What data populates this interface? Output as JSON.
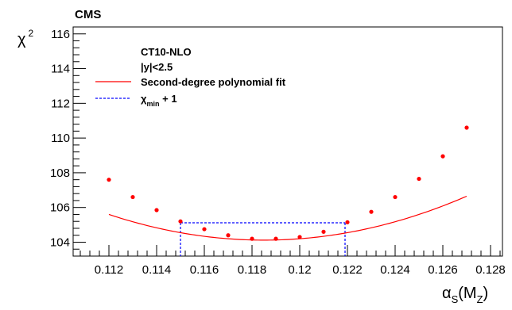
{
  "chart_data": {
    "type": "scatter",
    "experiment_label": "CMS",
    "xlabel": {
      "main": "α",
      "sub1": "S",
      "paren_open": "(M",
      "sub2": "Z",
      "paren_close": ")"
    },
    "ylabel": {
      "main": "χ",
      "sup": "2"
    },
    "xlim": [
      0.1105,
      0.1285
    ],
    "ylim": [
      103.2,
      116.4
    ],
    "x_ticks": [
      {
        "v": 0.112,
        "label": "0.112"
      },
      {
        "v": 0.114,
        "label": "0.114"
      },
      {
        "v": 0.116,
        "label": "0.116"
      },
      {
        "v": 0.118,
        "label": "0.118"
      },
      {
        "v": 0.12,
        "label": "0.12"
      },
      {
        "v": 0.122,
        "label": "0.122"
      },
      {
        "v": 0.124,
        "label": "0.124"
      },
      {
        "v": 0.126,
        "label": "0.126"
      },
      {
        "v": 0.128,
        "label": "0.128"
      }
    ],
    "y_ticks": [
      {
        "v": 104,
        "label": "104"
      },
      {
        "v": 106,
        "label": "106"
      },
      {
        "v": 108,
        "label": "108"
      },
      {
        "v": 110,
        "label": "110"
      },
      {
        "v": 112,
        "label": "112"
      },
      {
        "v": 114,
        "label": "114"
      },
      {
        "v": 116,
        "label": "116"
      }
    ],
    "legend": {
      "position": "top-left",
      "header_lines": [
        "CT10-NLO",
        "|y|<2.5"
      ],
      "entries": [
        {
          "kind": "fit",
          "label": "Second-degree polynomial fit"
        },
        {
          "kind": "band",
          "label_main": "χ",
          "label_sub": "min",
          "label_rest": " + 1"
        }
      ]
    },
    "points": {
      "x": [
        0.112,
        0.113,
        0.114,
        0.115,
        0.116,
        0.117,
        0.118,
        0.119,
        0.12,
        0.121,
        0.122,
        0.123,
        0.124,
        0.125,
        0.126,
        0.127
      ],
      "y": [
        107.6,
        106.6,
        105.85,
        105.2,
        104.75,
        104.4,
        104.2,
        104.2,
        104.3,
        104.6,
        105.15,
        105.75,
        106.6,
        107.65,
        108.95,
        110.6
      ]
    },
    "fit": {
      "type": "quadratic",
      "a": 0.035,
      "b": 0.1185,
      "c": 104.12,
      "range": [
        0.112,
        0.127
      ]
    },
    "chi2_min_plus_1": {
      "y": 105.12,
      "x_low": 0.115,
      "x_high": 0.1219
    },
    "colors": {
      "points": "#ff0000",
      "fit": "#ff0000",
      "band": "#0000ff"
    }
  }
}
